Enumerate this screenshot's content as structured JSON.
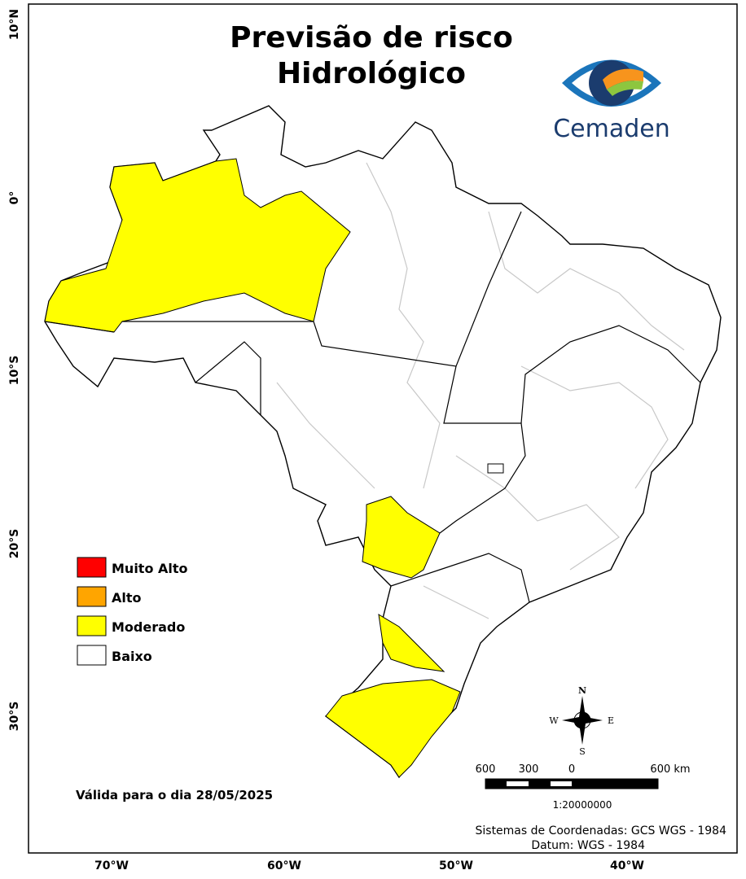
{
  "header": {
    "title_lines": [
      "Previsão de risco",
      "Hidrológico"
    ]
  },
  "logo": {
    "text": "Cemaden"
  },
  "legend": {
    "items": [
      {
        "label": "Muito Alto",
        "color": "#ff0000"
      },
      {
        "label": "Alto",
        "color": "#ffa500"
      },
      {
        "label": "Moderado",
        "color": "#ffff00"
      },
      {
        "label": "Baixo",
        "color": "#ffffff"
      }
    ]
  },
  "validity": "Válida para o dia 28/05/2025",
  "compass": {
    "n": "N",
    "s": "S",
    "e": "E",
    "w": "W"
  },
  "scale": {
    "labels": [
      "600",
      "300",
      "0",
      "600 km"
    ],
    "ratio": "1:20000000"
  },
  "footer": {
    "lines": [
      "Sistemas de Coordenadas: GCS WGS - 1984",
      "Datum: WGS - 1984"
    ]
  },
  "graticule": {
    "lat_labels": [
      "10°N",
      "0°",
      "10°S",
      "20°S",
      "30°S"
    ],
    "lon_labels": [
      "70°W",
      "60°W",
      "50°W",
      "40°W"
    ]
  }
}
